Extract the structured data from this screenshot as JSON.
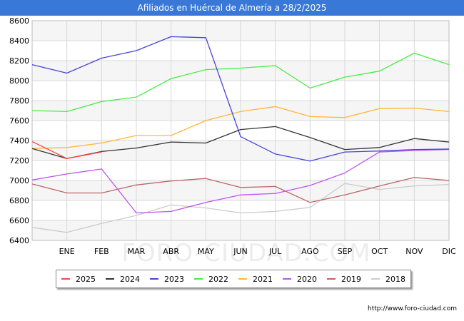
{
  "title": "Afiliados en Huércal de Almería a 28/2/2025",
  "credit": "http://www.foro-ciudad.com",
  "watermark": "FORO-CIUDAD.COM",
  "chart_data": {
    "type": "line",
    "title": "Afiliados en Huércal de Almería a 28/2/2025",
    "categories": [
      "",
      "ENE",
      "FEB",
      "MAR",
      "ABR",
      "MAY",
      "JUN",
      "JUL",
      "AGO",
      "SEP",
      "OCT",
      "NOV",
      "DIC"
    ],
    "ylim": [
      6400,
      8600
    ],
    "yticks": [
      6400,
      6600,
      6800,
      7000,
      7200,
      7400,
      7600,
      7800,
      8000,
      8200,
      8400,
      8600
    ],
    "grid": true,
    "legend_position": "bottom",
    "series": [
      {
        "name": "2025",
        "color": "#ff4444",
        "values": [
          7390,
          7220,
          7285,
          null,
          null,
          null,
          null,
          null,
          null,
          null,
          null,
          null,
          null
        ]
      },
      {
        "name": "2024",
        "color": "#333333",
        "values": [
          7320,
          7220,
          7290,
          7325,
          7385,
          7375,
          7510,
          7540,
          7430,
          7310,
          7330,
          7420,
          7385
        ]
      },
      {
        "name": "2023",
        "color": "#4444dd",
        "values": [
          8160,
          8075,
          8225,
          8300,
          8440,
          8430,
          7440,
          7265,
          7195,
          7285,
          7295,
          7310,
          7315
        ]
      },
      {
        "name": "2022",
        "color": "#44ee44",
        "values": [
          7700,
          7690,
          7790,
          7835,
          8020,
          8110,
          8125,
          8150,
          7925,
          8035,
          8095,
          8275,
          8160
        ]
      },
      {
        "name": "2021",
        "color": "#ffb733",
        "values": [
          7320,
          7330,
          7375,
          7450,
          7450,
          7600,
          7690,
          7740,
          7640,
          7630,
          7720,
          7725,
          7690
        ]
      },
      {
        "name": "2020",
        "color": "#bb55ee",
        "values": [
          7005,
          7065,
          7115,
          6675,
          6690,
          6780,
          6855,
          6870,
          6950,
          7075,
          7285,
          7300,
          7310
        ]
      },
      {
        "name": "2019",
        "color": "#bb6666",
        "values": [
          6965,
          6875,
          6875,
          6955,
          6995,
          7020,
          6930,
          6940,
          6780,
          6855,
          6945,
          7030,
          7000
        ]
      },
      {
        "name": "2018",
        "color": "#cccccc",
        "values": [
          6530,
          6480,
          6570,
          6650,
          6755,
          6725,
          6675,
          6690,
          6730,
          6970,
          6910,
          6945,
          6960
        ]
      }
    ]
  }
}
